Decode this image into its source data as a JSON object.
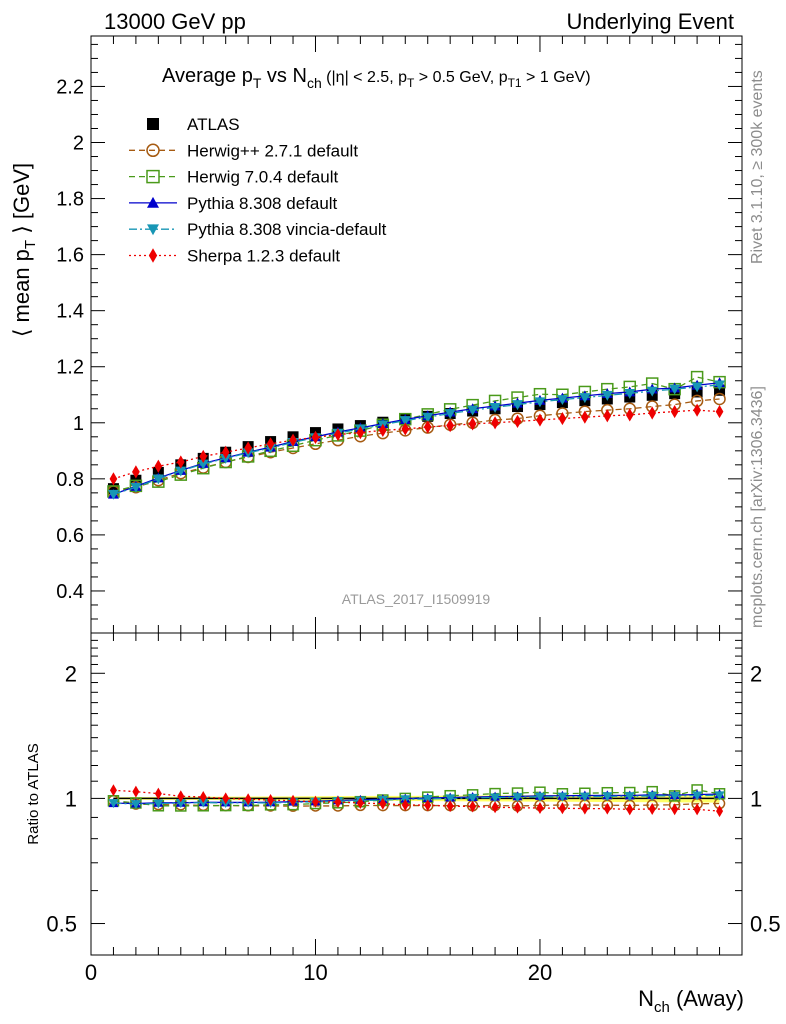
{
  "header": {
    "left": "13000 GeV pp",
    "right": "Underlying Event"
  },
  "side_labels": {
    "rivet": "Rivet 3.1.10, ≥ 300k events",
    "mcplots": "mcplots.cern.ch [arXiv:1306.3436]"
  },
  "watermark": "ATLAS_2017_I1509919",
  "title": {
    "main": "Average p",
    "sub_t": "T",
    "vs": " vs N",
    "sub_ch": "ch",
    "cuts": " (|η| < 2.5, p",
    "cuts_sub1": "T",
    "cuts_mid": " > 0.5 GeV, p",
    "cuts_sub2": "T1",
    "cuts_end": " > 1 GeV)"
  },
  "ylabel_top": {
    "pre": "⟨ mean p",
    "sub": "T",
    "post": " ⟩ [GeV]"
  },
  "ylabel_bottom": "Ratio to ATLAS",
  "xlabel": {
    "pre": "N",
    "sub": "ch",
    "post": " (Away)"
  },
  "legend": [
    {
      "label": "ATLAS",
      "color": "#000000",
      "marker": "square-filled",
      "line": "none"
    },
    {
      "label": "Herwig++ 2.7.1 default",
      "color": "#a65b12",
      "marker": "circle-open",
      "line": "dashed"
    },
    {
      "label": "Herwig 7.0.4 default",
      "color": "#4a9a1a",
      "marker": "square-open",
      "line": "dashed"
    },
    {
      "label": "Pythia 8.308 default",
      "color": "#0000cc",
      "marker": "triangle-up-filled",
      "line": "solid"
    },
    {
      "label": "Pythia 8.308 vincia-default",
      "color": "#1796b5",
      "marker": "triangle-down-filled",
      "line": "dashdot"
    },
    {
      "label": "Sherpa 1.2.3 default",
      "color": "#ee0000",
      "marker": "diamond-filled",
      "line": "dotted"
    }
  ],
  "chart_data": [
    {
      "type": "scatter",
      "panel": "main",
      "xlim": [
        0,
        29
      ],
      "ylim": [
        0.25,
        2.38
      ],
      "yticks": [
        0.4,
        0.6,
        0.8,
        1,
        1.2,
        1.4,
        1.6,
        1.8,
        2,
        2.2
      ],
      "ytick_labels": [
        "0.4",
        "0.6",
        "0.8",
        "1",
        "1.2",
        "1.4",
        "1.6",
        "1.8",
        "2",
        "2.2"
      ],
      "x": [
        1,
        2,
        3,
        4,
        5,
        6,
        7,
        8,
        9,
        10,
        11,
        12,
        13,
        14,
        15,
        16,
        17,
        18,
        19,
        20,
        21,
        22,
        23,
        24,
        25,
        26,
        27,
        28
      ],
      "series": [
        {
          "name": "ATLAS",
          "values": [
            0.765,
            0.795,
            0.823,
            0.85,
            0.873,
            0.895,
            0.915,
            0.933,
            0.95,
            0.965,
            0.978,
            0.99,
            1.002,
            1.013,
            1.023,
            1.033,
            1.042,
            1.05,
            1.058,
            1.065,
            1.072,
            1.079,
            1.085,
            1.092,
            1.098,
            1.104,
            1.11,
            1.116
          ]
        },
        {
          "name": "Herwig++ 2.7.1 default",
          "values": [
            0.755,
            0.77,
            0.795,
            0.82,
            0.84,
            0.86,
            0.878,
            0.895,
            0.91,
            0.925,
            0.938,
            0.952,
            0.963,
            0.973,
            0.983,
            0.993,
            1.0,
            1.01,
            1.015,
            1.025,
            1.033,
            1.04,
            1.045,
            1.05,
            1.058,
            1.065,
            1.078,
            1.085
          ]
        },
        {
          "name": "Herwig 7.0.4 default",
          "values": [
            0.755,
            0.775,
            0.79,
            0.815,
            0.838,
            0.86,
            0.88,
            0.9,
            0.918,
            0.938,
            0.955,
            0.972,
            0.993,
            1.013,
            1.03,
            1.048,
            1.063,
            1.078,
            1.09,
            1.102,
            1.1,
            1.11,
            1.12,
            1.128,
            1.14,
            1.12,
            1.163,
            1.145
          ]
        },
        {
          "name": "Pythia 8.308 default",
          "values": [
            0.745,
            0.773,
            0.803,
            0.83,
            0.855,
            0.875,
            0.895,
            0.913,
            0.933,
            0.95,
            0.967,
            0.982,
            0.997,
            1.012,
            1.025,
            1.038,
            1.05,
            1.06,
            1.07,
            1.08,
            1.088,
            1.096,
            1.104,
            1.11,
            1.12,
            1.124,
            1.134,
            1.143
          ]
        },
        {
          "name": "Pythia 8.308 vincia-default",
          "values": [
            0.745,
            0.77,
            0.8,
            0.828,
            0.853,
            0.873,
            0.893,
            0.91,
            0.93,
            0.947,
            0.963,
            0.978,
            0.993,
            1.008,
            1.02,
            1.033,
            1.045,
            1.055,
            1.065,
            1.075,
            1.083,
            1.09,
            1.098,
            1.105,
            1.113,
            1.12,
            1.128,
            1.135
          ]
        },
        {
          "name": "Sherpa 1.2.3 default",
          "values": [
            0.8,
            0.825,
            0.845,
            0.86,
            0.88,
            0.895,
            0.91,
            0.925,
            0.938,
            0.948,
            0.958,
            0.965,
            0.973,
            0.978,
            0.985,
            0.99,
            0.996,
            1.0,
            1.005,
            1.01,
            1.015,
            1.02,
            1.025,
            1.028,
            1.035,
            1.04,
            1.045,
            1.04
          ]
        }
      ]
    },
    {
      "type": "scatter",
      "panel": "ratio",
      "ylabel": "Ratio to ATLAS",
      "log_y": true,
      "ylim": [
        0.42,
        2.5
      ],
      "yticks": [
        0.5,
        1,
        2
      ],
      "ytick_labels": [
        "0.5",
        "1",
        "2"
      ],
      "xlim": [
        0,
        29
      ],
      "xticks": [
        0,
        10,
        20
      ],
      "xtick_labels": [
        "0",
        "10",
        "20"
      ],
      "x": [
        1,
        2,
        3,
        4,
        5,
        6,
        7,
        8,
        9,
        10,
        11,
        12,
        13,
        14,
        15,
        16,
        17,
        18,
        19,
        20,
        21,
        22,
        23,
        24,
        25,
        26,
        27,
        28
      ],
      "series": [
        {
          "name": "Herwig++ 2.7.1 default",
          "values": [
            0.987,
            0.969,
            0.966,
            0.965,
            0.962,
            0.961,
            0.96,
            0.959,
            0.958,
            0.959,
            0.959,
            0.962,
            0.961,
            0.961,
            0.961,
            0.961,
            0.96,
            0.962,
            0.959,
            0.962,
            0.964,
            0.964,
            0.963,
            0.962,
            0.964,
            0.965,
            0.971,
            0.972
          ]
        },
        {
          "name": "Herwig 7.0.4 default",
          "values": [
            0.987,
            0.975,
            0.96,
            0.959,
            0.96,
            0.961,
            0.962,
            0.965,
            0.966,
            0.972,
            0.976,
            0.982,
            0.991,
            1.0,
            1.007,
            1.015,
            1.02,
            1.027,
            1.03,
            1.035,
            1.026,
            1.029,
            1.032,
            1.033,
            1.038,
            1.014,
            1.048,
            1.026
          ]
        },
        {
          "name": "Pythia 8.308 default",
          "values": [
            0.974,
            0.972,
            0.976,
            0.976,
            0.979,
            0.978,
            0.978,
            0.979,
            0.982,
            0.984,
            0.989,
            0.992,
            0.995,
            0.999,
            1.002,
            1.005,
            1.008,
            1.01,
            1.011,
            1.014,
            1.015,
            1.016,
            1.017,
            1.016,
            1.02,
            1.018,
            1.022,
            1.024
          ]
        },
        {
          "name": "Pythia 8.308 vincia-default",
          "values": [
            0.974,
            0.969,
            0.972,
            0.974,
            0.977,
            0.975,
            0.976,
            0.975,
            0.979,
            0.981,
            0.985,
            0.988,
            0.991,
            0.995,
            0.997,
            1.0,
            1.003,
            1.005,
            1.007,
            1.009,
            1.01,
            1.01,
            1.012,
            1.012,
            1.014,
            1.014,
            1.016,
            1.017
          ]
        },
        {
          "name": "Sherpa 1.2.3 default",
          "values": [
            1.046,
            1.038,
            1.027,
            1.012,
            1.008,
            1.0,
            0.995,
            0.991,
            0.987,
            0.982,
            0.98,
            0.975,
            0.971,
            0.965,
            0.963,
            0.958,
            0.956,
            0.952,
            0.95,
            0.948,
            0.947,
            0.945,
            0.945,
            0.941,
            0.943,
            0.942,
            0.941,
            0.932
          ]
        }
      ]
    }
  ]
}
